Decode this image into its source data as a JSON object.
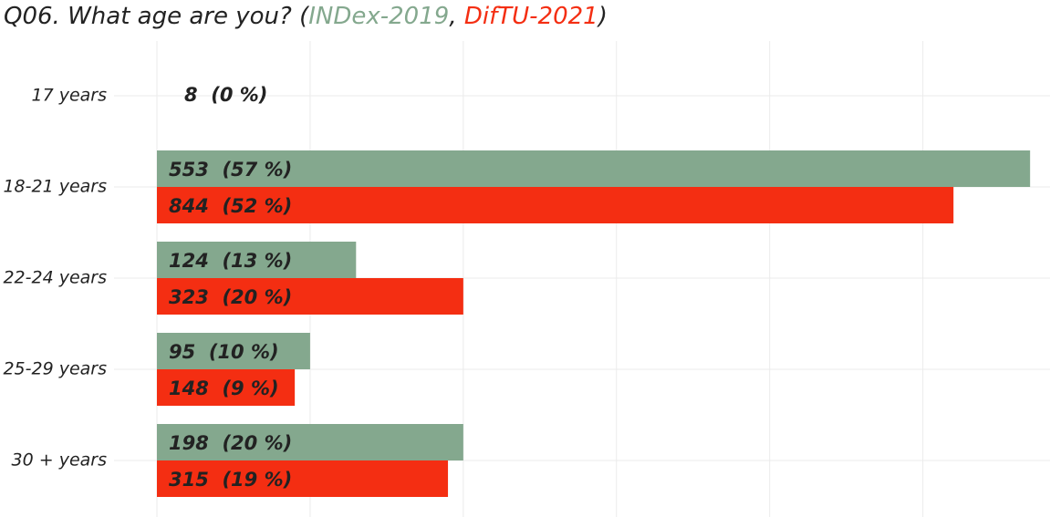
{
  "chart_data": {
    "type": "bar",
    "orientation": "horizontal",
    "title": "Q06. What age are you?",
    "legend_open": "(",
    "legend_separator": ",",
    "legend_close": ")",
    "categories": [
      "17 years",
      "18-21 years",
      "22-24 years",
      "25-29 years",
      "30 + years"
    ],
    "series": [
      {
        "name": "INDex-2019",
        "color": "#84a88e",
        "values": [
          0,
          57,
          13,
          10,
          20
        ],
        "value_labels": [
          "8  (0 %)",
          "553  (57 %)",
          "124  (13 %)",
          "95  (10 %)",
          "198  (20 %)"
        ]
      },
      {
        "name": "DifTU-2021",
        "color": "#f42e12",
        "values": [
          null,
          52,
          20,
          9,
          19
        ],
        "value_labels": [
          null,
          "844  (52 %)",
          "323  (20 %)",
          "148  (9 %)",
          "315  (19 %)"
        ]
      }
    ],
    "xlim": [
      0,
      58.3
    ],
    "xticks": [
      0,
      10,
      20,
      30,
      40,
      50
    ],
    "tick_labels": false,
    "grid": true
  }
}
